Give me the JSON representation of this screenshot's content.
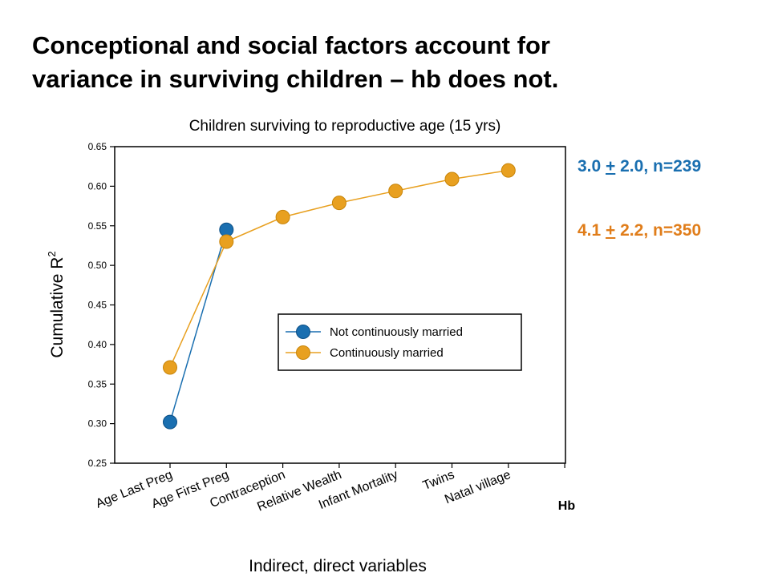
{
  "slide": {
    "title_line1": "Conceptional and social factors account for",
    "title_line2": "variance in surviving children – hb does not.",
    "stat_a": {
      "mean": "3.0 ",
      "pm": "+",
      "rest": " 2.0, n=239"
    },
    "stat_b": {
      "mean": "4.1 ",
      "pm": "+",
      "rest": " 2.2, n=350"
    }
  },
  "chart_data": {
    "type": "line",
    "title": "Children surviving to reproductive age (15 yrs)",
    "xlabel": "Indirect, direct variables",
    "ylabel": "Cumulative R",
    "ylabel_superscript": "2",
    "categories": [
      "Age Last Preg",
      "Age First Preg",
      "Contraception",
      "Relative Wealth",
      "Infant Mortality",
      "Twins",
      "Natal village",
      "Hb"
    ],
    "ylim": [
      0.25,
      0.65
    ],
    "yticks": [
      0.25,
      0.3,
      0.35,
      0.4,
      0.45,
      0.5,
      0.55,
      0.6,
      0.65
    ],
    "ytick_labels": [
      "0.25",
      "0.30",
      "0.35",
      "0.40",
      "0.45",
      "0.50",
      "0.55",
      "0.60",
      "0.65"
    ],
    "legend_position": "center-right",
    "grid": false,
    "series": [
      {
        "name": "Not continuously married",
        "color": "#1a6fb0",
        "values": [
          0.302,
          0.545,
          null,
          null,
          null,
          null,
          null,
          null
        ]
      },
      {
        "name": "Continuously married",
        "color": "#e8a020",
        "values": [
          0.371,
          0.53,
          0.561,
          0.579,
          0.594,
          0.609,
          0.62,
          null
        ]
      }
    ],
    "colors": {
      "stat_a": "#1a6fb0",
      "stat_b": "#e07d1a"
    }
  }
}
